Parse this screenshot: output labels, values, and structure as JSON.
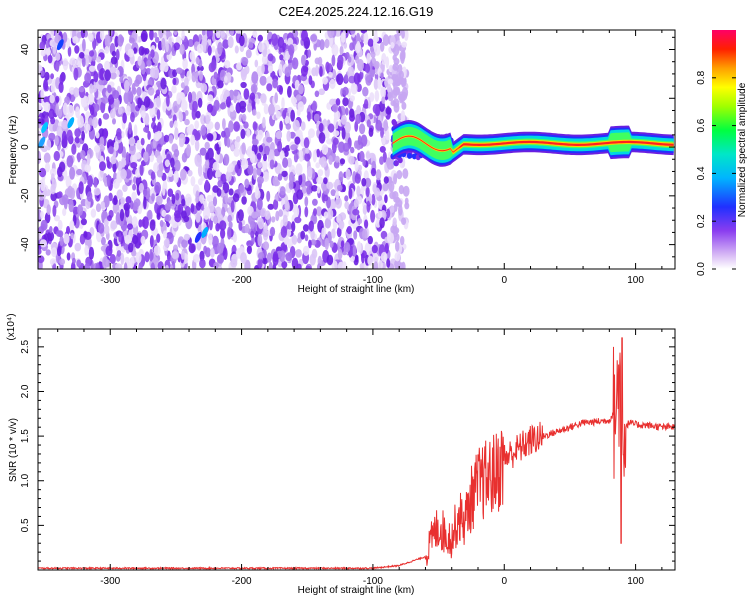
{
  "chart_data": [
    {
      "type": "heatmap",
      "title": "C2E4.2025.224.12.16.G19",
      "xlabel": "Height of straight line (km)",
      "ylabel": "Frequency (Hz)",
      "xlim": [
        -355,
        130
      ],
      "ylim": [
        -50,
        48
      ],
      "xticks": [
        "-300",
        "-200",
        "-100",
        "0",
        "100"
      ],
      "yticks": [
        "-40",
        "-20",
        "0",
        "20",
        "40"
      ],
      "colorbar": {
        "label": "Normalized spectral amplitude",
        "range": [
          0,
          1
        ],
        "ticks": [
          "0.0",
          "0.2",
          "0.4",
          "0.6",
          "0.8"
        ]
      },
      "features": {
        "noise_region_x": [
          -355,
          -78
        ],
        "signal_band_center_hz": 1.5,
        "signal_band_start_x": -85
      }
    },
    {
      "type": "line",
      "title": "",
      "xlabel": "Height of straight line (km)",
      "ylabel": "SNR (10 * v/v)",
      "y_multiplier": "(x10⁴)",
      "xlim": [
        -355,
        130
      ],
      "ylim": [
        0,
        2.7
      ],
      "xticks": [
        "-300",
        "-200",
        "-100",
        "0",
        "100"
      ],
      "yticks": [
        "0.5",
        "1.0",
        "1.5",
        "2.0",
        "2.5"
      ],
      "series": [
        {
          "color": "#e8302f",
          "x": [
            -355,
            -300,
            -200,
            -100,
            -80,
            -60,
            -55,
            -50,
            -45,
            -40,
            -35,
            -30,
            -25,
            -20,
            -15,
            -10,
            -5,
            0,
            10,
            20,
            30,
            40,
            50,
            60,
            70,
            80,
            85,
            88,
            90,
            92,
            95,
            100,
            110,
            120,
            130
          ],
          "y": [
            0.02,
            0.02,
            0.02,
            0.02,
            0.05,
            0.15,
            0.35,
            0.5,
            0.4,
            0.35,
            0.6,
            0.55,
            0.8,
            0.95,
            1.0,
            1.05,
            1.1,
            1.25,
            1.35,
            1.45,
            1.5,
            1.55,
            1.6,
            1.65,
            1.66,
            1.68,
            1.8,
            2.2,
            1.7,
            1.6,
            1.65,
            1.63,
            1.62,
            1.6,
            1.6
          ]
        }
      ]
    }
  ]
}
